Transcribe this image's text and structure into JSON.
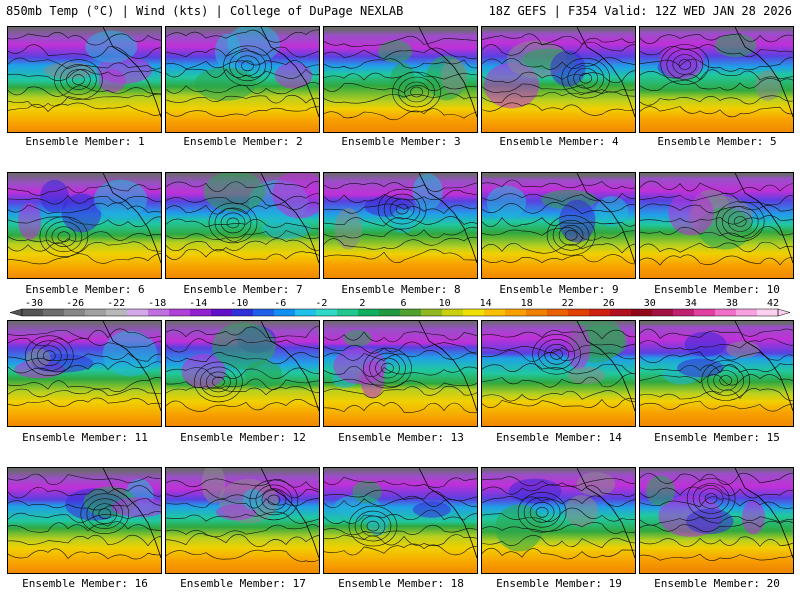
{
  "header": {
    "left_title": "850mb Temp (°C) | Wind (kts) | College of DuPage NEXLAB",
    "right_title": "18Z GEFS | F354 Valid: 12Z WED JAN 28 2026"
  },
  "members": [
    {
      "label": "Ensemble Member: 1"
    },
    {
      "label": "Ensemble Member: 2"
    },
    {
      "label": "Ensemble Member: 3"
    },
    {
      "label": "Ensemble Member: 4"
    },
    {
      "label": "Ensemble Member: 5"
    },
    {
      "label": "Ensemble Member: 6"
    },
    {
      "label": "Ensemble Member: 7"
    },
    {
      "label": "Ensemble Member: 8"
    },
    {
      "label": "Ensemble Member: 9"
    },
    {
      "label": "Ensemble Member: 10"
    },
    {
      "label": "Ensemble Member: 11"
    },
    {
      "label": "Ensemble Member: 12"
    },
    {
      "label": "Ensemble Member: 13"
    },
    {
      "label": "Ensemble Member: 14"
    },
    {
      "label": "Ensemble Member: 15"
    },
    {
      "label": "Ensemble Member: 16"
    },
    {
      "label": "Ensemble Member: 17"
    },
    {
      "label": "Ensemble Member: 18"
    },
    {
      "label": "Ensemble Member: 19"
    },
    {
      "label": "Ensemble Member: 20"
    }
  ],
  "colorbar": {
    "tick_labels": [
      "-30",
      "-26",
      "-22",
      "-18",
      "-14",
      "-10",
      "-6",
      "-2",
      "2",
      "6",
      "10",
      "14",
      "18",
      "22",
      "26",
      "30",
      "34",
      "38",
      "42"
    ],
    "colors": [
      "#555555",
      "#6e6e6e",
      "#878787",
      "#a0a0a0",
      "#b8b8b8",
      "#d2a8e8",
      "#c070e0",
      "#b040d8",
      "#9020d0",
      "#6010c8",
      "#3030d8",
      "#2060e8",
      "#1090f0",
      "#20c0e8",
      "#30d8c8",
      "#20c890",
      "#10b060",
      "#209840",
      "#50a030",
      "#90b820",
      "#c8d010",
      "#f0e000",
      "#f8c000",
      "#f8a000",
      "#f08000",
      "#e86000",
      "#e04000",
      "#d02010",
      "#b01020",
      "#900818",
      "#a01040",
      "#c02070",
      "#e040a0",
      "#f070c8",
      "#f8a0e0",
      "#fcd0f0"
    ]
  }
}
